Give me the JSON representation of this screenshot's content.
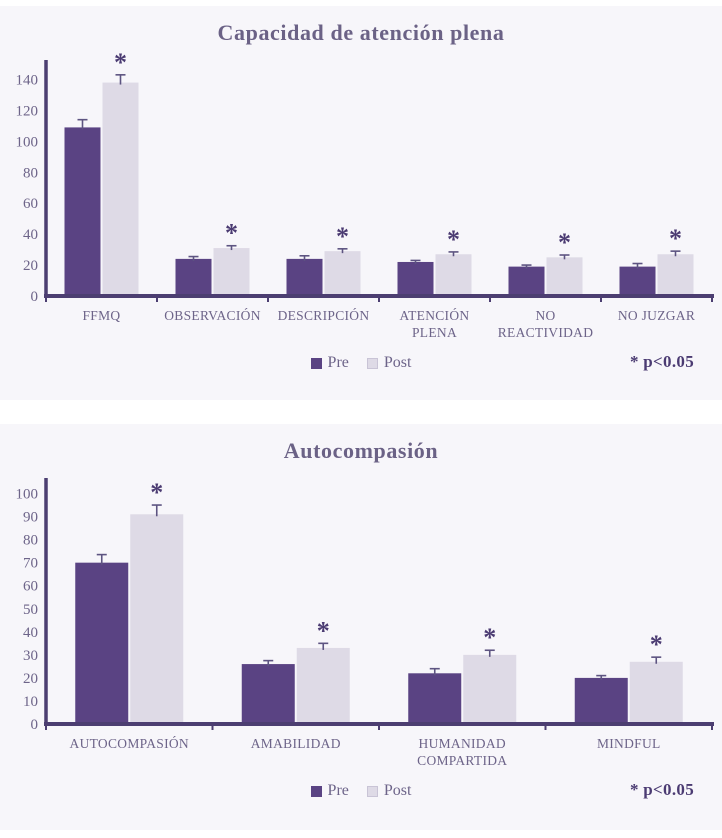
{
  "colors": {
    "pre": "#5a4383",
    "post": "#dedae6",
    "axis": "#4c3e71",
    "tick_text": "#6d6489",
    "title": "#6b6286",
    "note": "#4b3b72",
    "error_bar": "#5d5481",
    "panel_background": "#f7f6fa",
    "page_background": "#ffffff"
  },
  "legend": {
    "pre_label": "Pre",
    "post_label": "Post"
  },
  "chart_data": [
    {
      "type": "bar",
      "title": "Capacidad de atención plena",
      "categories": [
        [
          "FFMQ"
        ],
        [
          "OBSERVACIÓN"
        ],
        [
          "DESCRIPCIÓN"
        ],
        [
          "ATENCIÓN",
          "PLENA"
        ],
        [
          "NO",
          "REACTIVIDAD"
        ],
        [
          "NO JUZGAR"
        ]
      ],
      "series": [
        {
          "name": "Pre",
          "values": [
            109,
            24,
            24,
            22,
            19,
            19
          ],
          "errors": [
            5,
            1.5,
            2,
            1,
            1,
            2
          ]
        },
        {
          "name": "Post",
          "values": [
            138,
            31,
            29,
            27,
            25,
            27
          ],
          "errors": [
            5,
            1.5,
            1.5,
            1.5,
            1.5,
            2
          ],
          "significant": [
            true,
            true,
            true,
            true,
            true,
            true
          ]
        }
      ],
      "ylim": [
        0,
        150
      ],
      "yticks": [
        0,
        20,
        40,
        60,
        80,
        100,
        120,
        140
      ],
      "grid": false,
      "legend_position": "bottom",
      "significance_note": "* p<0.05"
    },
    {
      "type": "bar",
      "title": "Autocompasión",
      "categories": [
        [
          "AUTOCOMPASIÓN"
        ],
        [
          "AMABILIDAD"
        ],
        [
          "HUMANIDAD",
          "COMPARTIDA"
        ],
        [
          "MINDFUL"
        ]
      ],
      "series": [
        {
          "name": "Pre",
          "values": [
            70,
            26,
            22,
            20
          ],
          "errors": [
            3.5,
            1.5,
            2,
            1
          ]
        },
        {
          "name": "Post",
          "values": [
            91,
            33,
            30,
            27
          ],
          "errors": [
            4,
            2,
            2,
            2
          ],
          "significant": [
            true,
            true,
            true,
            true
          ]
        }
      ],
      "ylim": [
        0,
        105
      ],
      "yticks": [
        0,
        10,
        20,
        30,
        40,
        50,
        60,
        70,
        80,
        90,
        100
      ],
      "grid": false,
      "legend_position": "bottom",
      "significance_note": "* p<0.05"
    }
  ]
}
